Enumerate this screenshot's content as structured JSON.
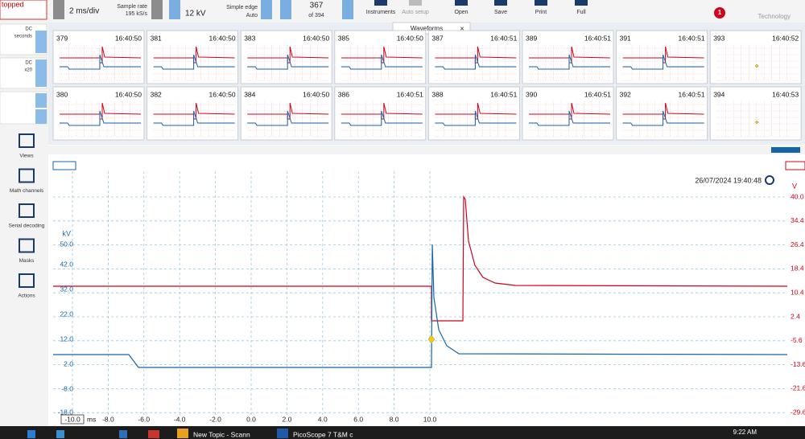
{
  "toolbar": {
    "status": "topped",
    "timebase": "2 ms/div",
    "sample_rate_label": "Sample rate",
    "sample_rate": "195 kS/s",
    "range": "12 kV",
    "trigger_type": "Simple edge",
    "trigger_mode": "Auto",
    "capture": "367",
    "capture_total": "of 394",
    "buttons": [
      "Instruments",
      "Auto setup",
      "Open",
      "Save",
      "Print",
      "Full"
    ],
    "notification": "1",
    "brand": "Technology"
  },
  "channels": [
    {
      "coupling": "DC",
      "detail": "seconds"
    },
    {
      "coupling": "DC",
      "detail": "x20"
    }
  ],
  "sidebar": [
    "Views",
    "Math channels",
    "Serial decoding",
    "Masks",
    "Actions"
  ],
  "tab": "Waveforms",
  "thumbnails": [
    [
      {
        "id": "379",
        "time": "16:40:50"
      },
      {
        "id": "381",
        "time": "16:40:50"
      },
      {
        "id": "383",
        "time": "16:40:50"
      },
      {
        "id": "385",
        "time": "16:40:50"
      },
      {
        "id": "387",
        "time": "16:40:51"
      },
      {
        "id": "389",
        "time": "16:40:51"
      },
      {
        "id": "391",
        "time": "16:40:51"
      },
      {
        "id": "393",
        "time": "16:40:52"
      }
    ],
    [
      {
        "id": "380",
        "time": "16:40:50"
      },
      {
        "id": "382",
        "time": "16:40:50"
      },
      {
        "id": "384",
        "time": "16:40:50"
      },
      {
        "id": "386",
        "time": "16:40:51"
      },
      {
        "id": "388",
        "time": "16:40:51"
      },
      {
        "id": "390",
        "time": "16:40:51"
      },
      {
        "id": "392",
        "time": "16:40:51"
      },
      {
        "id": "394",
        "time": "16:40:53"
      }
    ]
  ],
  "scope": {
    "timestamp": "26/07/2024 19:40:48",
    "left_unit": "kV",
    "right_unit": "V",
    "x_unit": "ms",
    "left_ticks": [
      "50.0",
      "42.0",
      "32.0",
      "22.0",
      "12.0",
      "2.0",
      "-8.0",
      "-18.0"
    ],
    "right_ticks": [
      "40.0",
      "34.4",
      "26.4",
      "18.4",
      "10.4",
      "2.4",
      "-5.6",
      "-13.6",
      "-21.6",
      "-29.6"
    ],
    "x_ticks": [
      "-10.0",
      "-8.0",
      "-6.0",
      "-4.0",
      "-2.0",
      "0.0",
      "2.0",
      "4.0",
      "6.0",
      "8.0",
      "10.0"
    ]
  },
  "taskbar": {
    "items": [
      "New Topic - Scann",
      "PicoScope 7 T&M c"
    ],
    "clock": "9:22 AM"
  }
}
